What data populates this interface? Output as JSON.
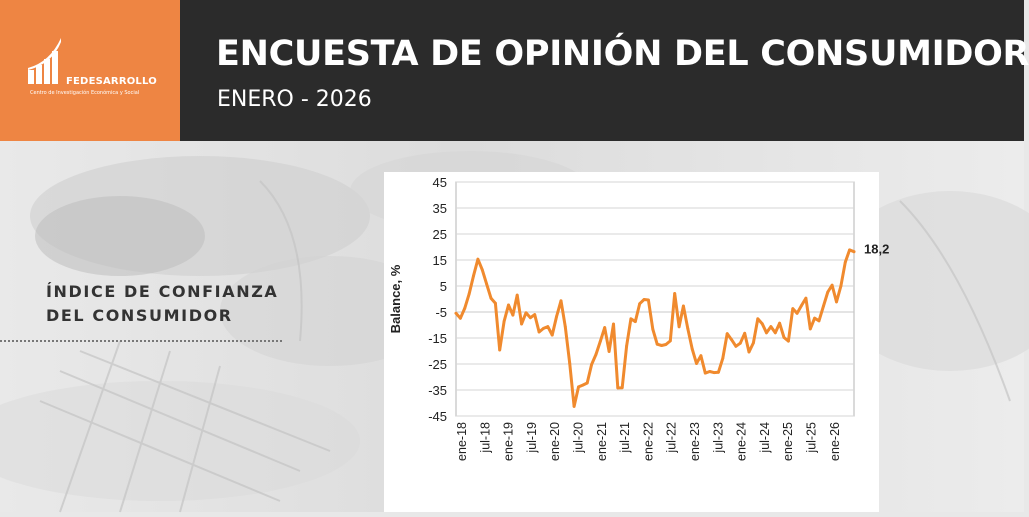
{
  "header": {
    "logo_name": "FEDESARROLLO",
    "logo_tagline": "Centro de Investigación Económica y Social",
    "title": "ENCUESTA DE OPINIÓN DEL CONSUMIDOR",
    "subtitle": "ENERO - 2026"
  },
  "side": {
    "line1": "ÍNDICE DE CONFIANZA",
    "line2": "DEL CONSUMIDOR"
  },
  "colors": {
    "brand_orange": "#ee8543",
    "series_orange": "#f08a2e",
    "header_dark": "#2b2b2b"
  },
  "chart_data": {
    "type": "line",
    "ylabel": "Balance, %",
    "ylim": [
      -45,
      45
    ],
    "yticks": [
      45,
      35,
      25,
      15,
      5,
      -5,
      -15,
      -25,
      -35,
      -45
    ],
    "grid": true,
    "x_tick_labels": [
      "ene-18",
      "jul-18",
      "ene-19",
      "jul-19",
      "ene-20",
      "jul-20",
      "ene-21",
      "jul-21",
      "ene-22",
      "jul-22",
      "ene-23",
      "jul-23",
      "ene-24",
      "jul-24",
      "ene-25",
      "jul-25",
      "ene-26"
    ],
    "last_value_label": "18,2",
    "series": [
      {
        "values": [
          -5.5,
          -7.4,
          -3.6,
          1.9,
          8.9,
          15.3,
          11.3,
          5.8,
          0.3,
          -1.6,
          -19.6,
          -8.6,
          -2.3,
          -6.2,
          1.5,
          -9.6,
          -5.3,
          -7.2,
          -6.0,
          -12.7,
          -11.3,
          -10.6,
          -13.9,
          -6.7,
          -0.7,
          -10.7,
          -24.7,
          -41.3,
          -33.8,
          -33.1,
          -32.3,
          -25.2,
          -21.3,
          -16.3,
          -11.0,
          -20.2,
          -9.6,
          -34.2,
          -34.1,
          -18.1,
          -7.6,
          -8.7,
          -1.8,
          -0.2,
          -0.4,
          -11.6,
          -17.4,
          -17.9,
          -17.5,
          -16.1,
          2.1,
          -10.7,
          -2.7,
          -11.4,
          -19.2,
          -24.8,
          -21.8,
          -28.5,
          -27.9,
          -28.3,
          -28.2,
          -22.8,
          -13.3,
          -15.6,
          -18.2,
          -17.0,
          -13.2,
          -20.4,
          -16.9,
          -7.6,
          -9.5,
          -13.0,
          -10.6,
          -13.0,
          -9.3,
          -14.8,
          -16.2,
          -3.7,
          -5.5,
          -2.5,
          0.3,
          -11.5,
          -7.4,
          -8.4,
          -2.8,
          2.7,
          5.3,
          -1.1,
          5.0,
          14.2,
          18.9,
          18.2
        ]
      }
    ]
  }
}
